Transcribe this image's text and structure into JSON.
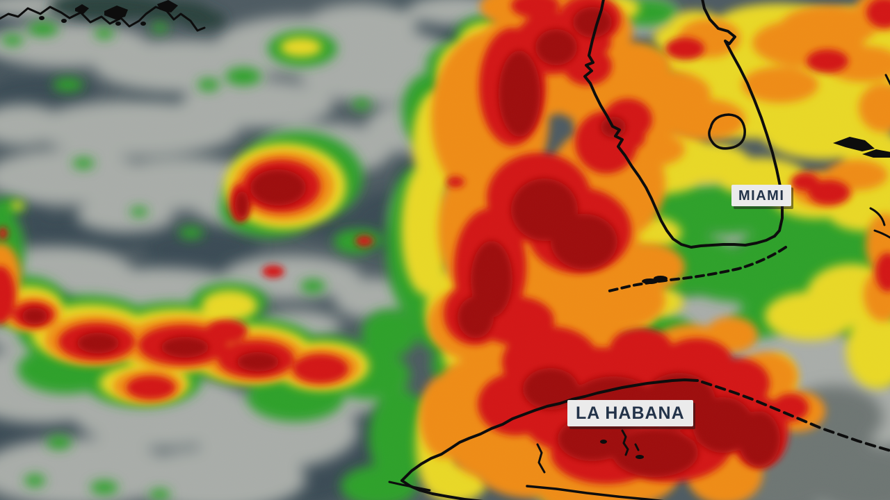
{
  "meta": {
    "type": "satellite-radar-weather-map",
    "region": "Gulf of Mexico, Florida and Cuba"
  },
  "map": {
    "labels": [
      {
        "id": "miami",
        "text": "MIAMI"
      },
      {
        "id": "la_habana",
        "text": "LA HABANA"
      }
    ],
    "palette": {
      "ocean_base": "#4e5b62",
      "ocean_dark": "#3b4b55",
      "land_dark": "#2c423c",
      "smoke_gray": "#6e7673",
      "low_cloud_gray": "#a9ada9",
      "rain_green": "#2ea12b",
      "rain_yellow": "#e9d827",
      "rain_orange": "#ef8c16",
      "rain_red": "#d31414",
      "rain_dark_red": "#9e100e",
      "coastline": "#0d0d0d",
      "label_background": "#ebebeb",
      "label_text": "#233349"
    },
    "intensity_scale": [
      "low_cloud_gray",
      "rain_green",
      "rain_yellow",
      "rain_orange",
      "rain_red",
      "rain_dark_red"
    ]
  }
}
